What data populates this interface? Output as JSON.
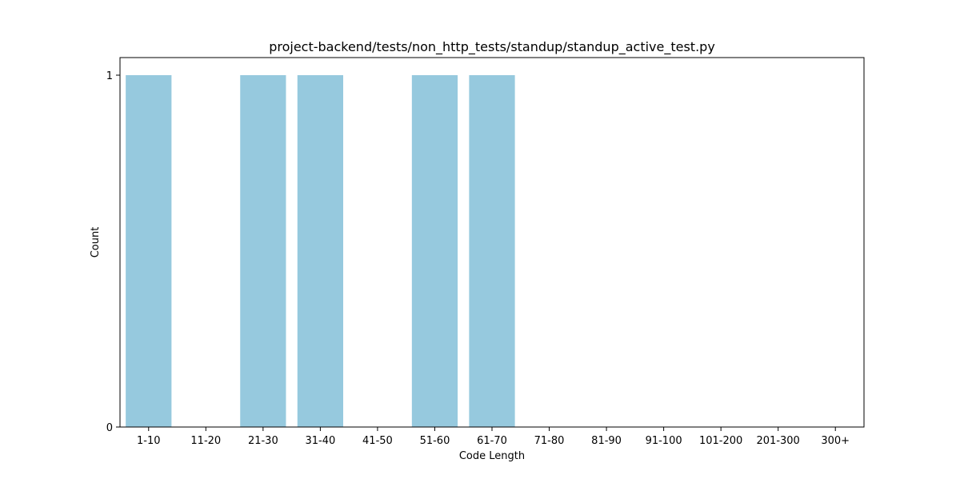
{
  "chart_data": {
    "type": "bar",
    "title": "project-backend/tests/non_http_tests/standup/standup_active_test.py",
    "xlabel": "Code Length",
    "ylabel": "Count",
    "categories": [
      "1-10",
      "11-20",
      "21-30",
      "31-40",
      "41-50",
      "51-60",
      "61-70",
      "71-80",
      "81-90",
      "91-100",
      "101-200",
      "201-300",
      "300+"
    ],
    "values": [
      1,
      0,
      1,
      1,
      0,
      1,
      1,
      0,
      0,
      0,
      0,
      0,
      0
    ],
    "ylim": [
      0,
      1.05
    ],
    "yticks": [
      0,
      1
    ],
    "grid": false,
    "bar_color": "#96c9de"
  }
}
